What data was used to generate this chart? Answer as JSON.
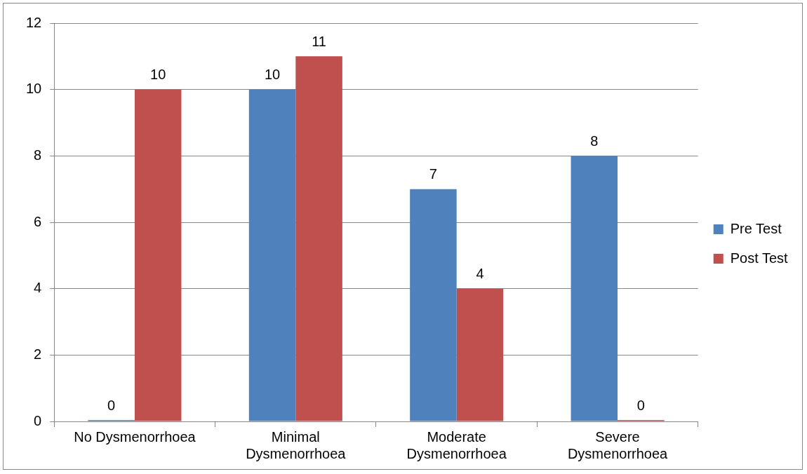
{
  "chart_data": {
    "type": "bar",
    "categories": [
      "No Dysmenorrhoea",
      "Minimal Dysmenorrhoea",
      "Moderate Dysmenorrhoea",
      "Severe Dysmenorrhoea"
    ],
    "series": [
      {
        "name": "Pre Test",
        "color": "#4f81bd",
        "values": [
          0,
          10,
          7,
          8
        ]
      },
      {
        "name": "Post Test",
        "color": "#c0504d",
        "values": [
          10,
          11,
          4,
          0
        ]
      }
    ],
    "ylim": [
      0,
      12
    ],
    "yticks": [
      0,
      2,
      4,
      6,
      8,
      10,
      12
    ],
    "grid": "y",
    "legend": "right",
    "data_labels": true
  }
}
